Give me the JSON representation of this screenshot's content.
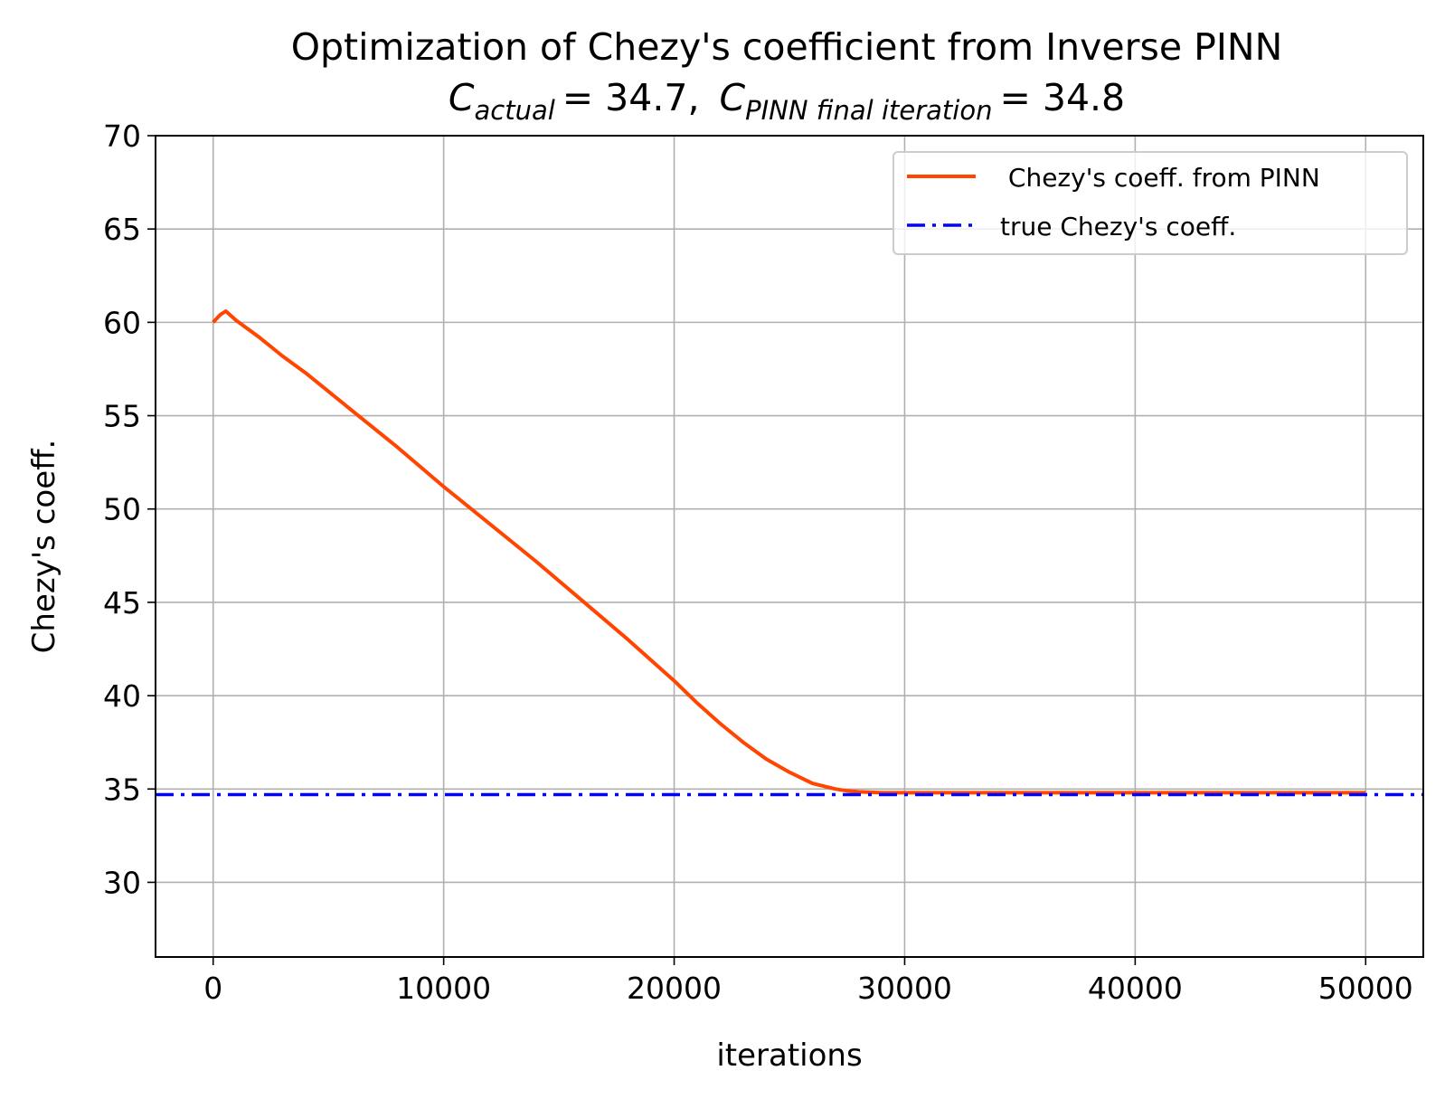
{
  "chart_data": {
    "type": "line",
    "title": "Optimization of Chezy's coefficient from Inverse PINN",
    "subtitle": {
      "c_actual_symbol": "C",
      "c_actual_sub": "actual",
      "c_actual_value": "= 34.7,",
      "c_pinn_symbol": "C",
      "c_pinn_sub": "PINN final iteration",
      "c_pinn_value": "= 34.8"
    },
    "xlabel": "iterations",
    "ylabel": "Chezy's coeff.",
    "xlim": [
      -2500,
      52500
    ],
    "ylim": [
      26,
      70
    ],
    "xticks": [
      0,
      10000,
      20000,
      30000,
      40000,
      50000
    ],
    "xtick_labels": [
      "0",
      "10000",
      "20000",
      "30000",
      "40000",
      "50000"
    ],
    "yticks": [
      30,
      35,
      40,
      45,
      50,
      55,
      60,
      65,
      70
    ],
    "ytick_labels": [
      "30",
      "35",
      "40",
      "45",
      "50",
      "55",
      "60",
      "65",
      "70"
    ],
    "grid": true,
    "legend_position": "top-right",
    "series": [
      {
        "name": " Chezy's coeff. from PINN",
        "color": "#ff4500",
        "style": "solid",
        "x": [
          0,
          300,
          550,
          1000,
          2000,
          3000,
          4000,
          6000,
          8000,
          10000,
          12000,
          14000,
          16000,
          18000,
          20000,
          21000,
          22000,
          23000,
          24000,
          25000,
          26000,
          27000,
          27500,
          28000,
          29000,
          30000,
          35000,
          40000,
          45000,
          50000
        ],
        "y": [
          60.0,
          60.4,
          60.6,
          60.1,
          59.2,
          58.2,
          57.3,
          55.3,
          53.3,
          51.2,
          49.2,
          47.2,
          45.1,
          43.0,
          40.8,
          39.6,
          38.5,
          37.5,
          36.6,
          35.9,
          35.3,
          35.0,
          34.9,
          34.85,
          34.8,
          34.8,
          34.8,
          34.8,
          34.8,
          34.8
        ]
      },
      {
        "name": "true Chezy's coeff.",
        "color": "#0000ff",
        "style": "dashdot",
        "y_constant": 34.7
      }
    ]
  }
}
